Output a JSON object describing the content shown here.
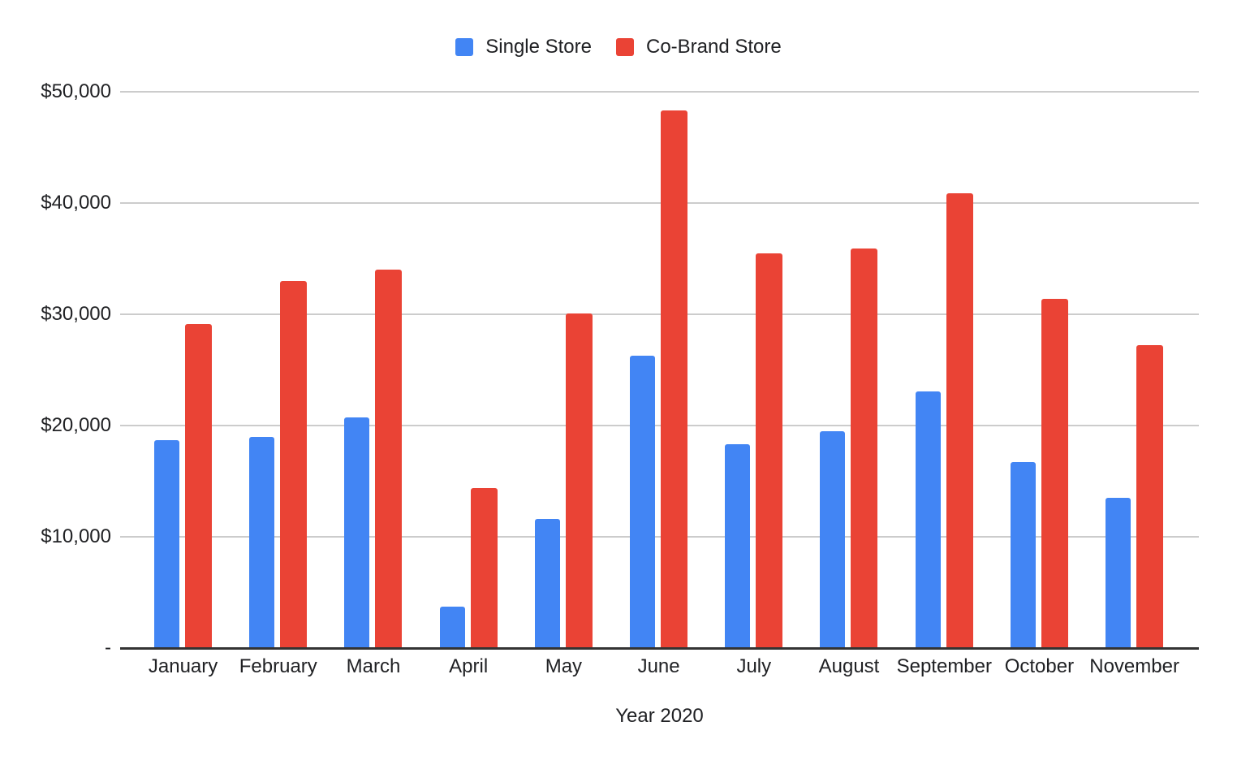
{
  "chart_data": {
    "type": "bar",
    "title": "",
    "xlabel": "Year 2020",
    "ylabel": "",
    "categories": [
      "January",
      "February",
      "March",
      "April",
      "May",
      "June",
      "July",
      "August",
      "September",
      "October",
      "November"
    ],
    "series": [
      {
        "name": "Single Store",
        "color": "#4285F4",
        "values": [
          18700,
          19000,
          20700,
          3700,
          11600,
          26300,
          18300,
          19500,
          23100,
          16700,
          13500
        ]
      },
      {
        "name": "Co-Brand Store",
        "color": "#EA4335",
        "values": [
          29100,
          33000,
          34000,
          14400,
          30100,
          48300,
          35500,
          35900,
          40900,
          31400,
          27200
        ]
      }
    ],
    "y_ticks": [
      {
        "value": 0,
        "label": "-"
      },
      {
        "value": 10000,
        "label": "$10,000"
      },
      {
        "value": 20000,
        "label": "$20,000"
      },
      {
        "value": 30000,
        "label": "$30,000"
      },
      {
        "value": 40000,
        "label": "$40,000"
      },
      {
        "value": 50000,
        "label": "$50,000"
      }
    ],
    "ylim": [
      0,
      50000
    ],
    "grid": true,
    "legend_position": "top",
    "gridline_color": "#cccccc",
    "axis_line_color": "#333333",
    "text_color": "#202124",
    "background_color": "#ffffff"
  }
}
